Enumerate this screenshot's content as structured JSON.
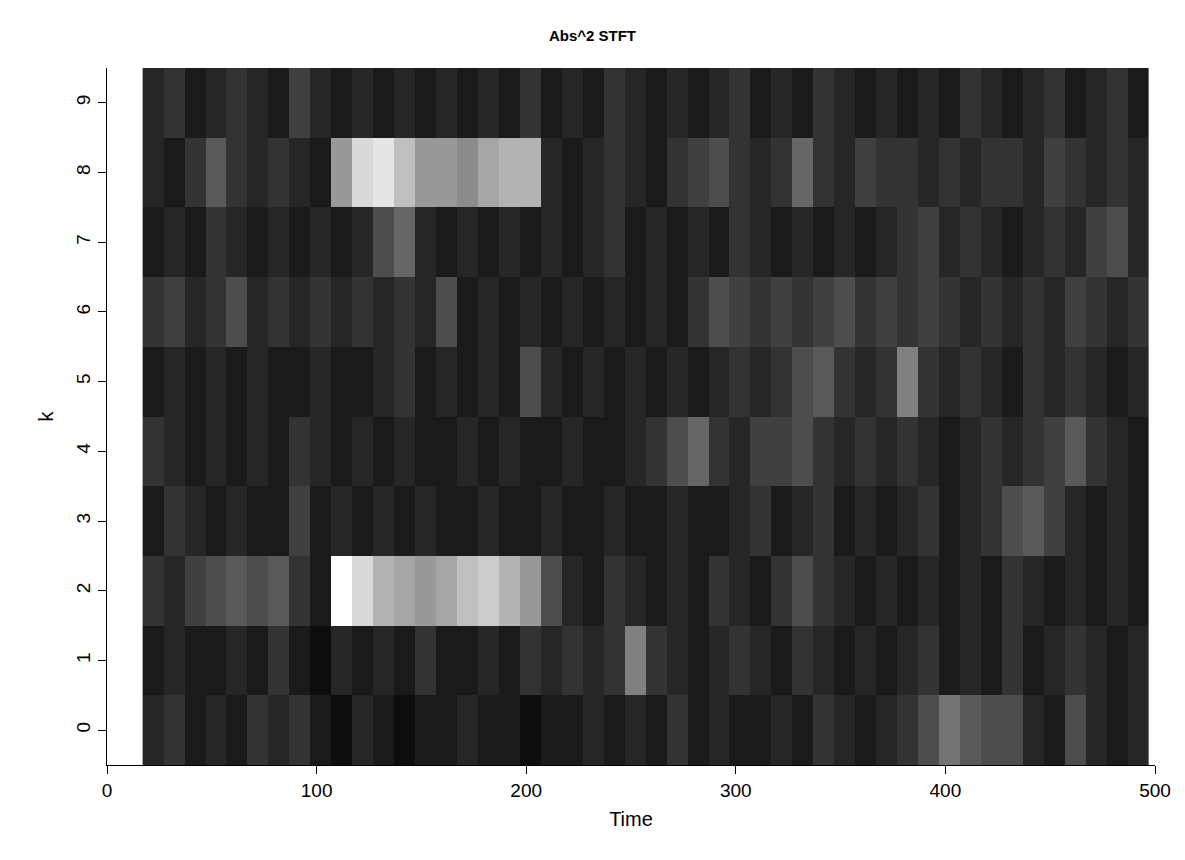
{
  "chart_data": {
    "type": "heatmap",
    "title": "Abs^2 STFT",
    "x_label": "Time",
    "y_label": "k",
    "x": [
      22,
      32,
      42,
      52,
      62,
      72,
      82,
      92,
      102,
      112,
      122,
      132,
      142,
      152,
      162,
      172,
      182,
      192,
      202,
      212,
      222,
      232,
      242,
      252,
      262,
      272,
      282,
      292,
      302,
      312,
      322,
      332,
      342,
      352,
      362,
      372,
      382,
      392,
      402,
      412,
      422,
      432,
      442,
      452,
      462,
      472,
      482,
      492
    ],
    "y": [
      0,
      1,
      2,
      3,
      4,
      5,
      6,
      7,
      8,
      9
    ],
    "z": [
      [
        0.15,
        0.2,
        0.1,
        0.15,
        0.1,
        0.2,
        0.15,
        0.2,
        0.1,
        0.05,
        0.15,
        0.1,
        0.05,
        0.1,
        0.1,
        0.15,
        0.1,
        0.1,
        0.05,
        0.1,
        0.1,
        0.15,
        0.1,
        0.15,
        0.1,
        0.2,
        0.1,
        0.15,
        0.1,
        0.1,
        0.15,
        0.1,
        0.2,
        0.15,
        0.1,
        0.15,
        0.2,
        0.3,
        0.45,
        0.35,
        0.3,
        0.3,
        0.15,
        0.1,
        0.3,
        0.15,
        0.1,
        0.15
      ],
      [
        0.1,
        0.15,
        0.1,
        0.1,
        0.15,
        0.1,
        0.2,
        0.1,
        0.05,
        0.15,
        0.1,
        0.15,
        0.1,
        0.2,
        0.1,
        0.1,
        0.15,
        0.1,
        0.2,
        0.15,
        0.2,
        0.15,
        0.2,
        0.5,
        0.2,
        0.15,
        0.1,
        0.15,
        0.2,
        0.15,
        0.1,
        0.2,
        0.15,
        0.1,
        0.15,
        0.1,
        0.15,
        0.2,
        0.1,
        0.15,
        0.1,
        0.2,
        0.1,
        0.15,
        0.2,
        0.15,
        0.1,
        0.15
      ],
      [
        0.2,
        0.15,
        0.25,
        0.3,
        0.35,
        0.3,
        0.35,
        0.2,
        0.1,
        1.0,
        0.85,
        0.7,
        0.65,
        0.6,
        0.65,
        0.75,
        0.8,
        0.7,
        0.6,
        0.3,
        0.15,
        0.1,
        0.2,
        0.15,
        0.1,
        0.15,
        0.1,
        0.2,
        0.15,
        0.1,
        0.2,
        0.3,
        0.2,
        0.15,
        0.1,
        0.15,
        0.1,
        0.15,
        0.1,
        0.15,
        0.1,
        0.2,
        0.15,
        0.1,
        0.15,
        0.1,
        0.15,
        0.1
      ],
      [
        0.1,
        0.2,
        0.15,
        0.1,
        0.15,
        0.1,
        0.1,
        0.25,
        0.1,
        0.15,
        0.1,
        0.15,
        0.1,
        0.15,
        0.1,
        0.1,
        0.15,
        0.1,
        0.1,
        0.15,
        0.1,
        0.1,
        0.15,
        0.1,
        0.1,
        0.15,
        0.1,
        0.1,
        0.15,
        0.2,
        0.1,
        0.15,
        0.2,
        0.1,
        0.15,
        0.1,
        0.15,
        0.2,
        0.1,
        0.15,
        0.2,
        0.3,
        0.35,
        0.25,
        0.15,
        0.1,
        0.15,
        0.1
      ],
      [
        0.2,
        0.15,
        0.1,
        0.15,
        0.1,
        0.15,
        0.1,
        0.2,
        0.15,
        0.1,
        0.15,
        0.1,
        0.15,
        0.1,
        0.1,
        0.15,
        0.1,
        0.15,
        0.1,
        0.1,
        0.15,
        0.1,
        0.1,
        0.15,
        0.2,
        0.3,
        0.4,
        0.2,
        0.15,
        0.25,
        0.25,
        0.3,
        0.2,
        0.15,
        0.2,
        0.15,
        0.2,
        0.15,
        0.1,
        0.15,
        0.2,
        0.15,
        0.2,
        0.25,
        0.35,
        0.2,
        0.15,
        0.1
      ],
      [
        0.1,
        0.15,
        0.1,
        0.15,
        0.1,
        0.15,
        0.1,
        0.1,
        0.15,
        0.1,
        0.1,
        0.15,
        0.2,
        0.1,
        0.15,
        0.1,
        0.15,
        0.1,
        0.3,
        0.15,
        0.1,
        0.15,
        0.1,
        0.15,
        0.1,
        0.15,
        0.1,
        0.15,
        0.2,
        0.15,
        0.2,
        0.3,
        0.35,
        0.2,
        0.15,
        0.2,
        0.5,
        0.2,
        0.15,
        0.2,
        0.15,
        0.1,
        0.2,
        0.15,
        0.2,
        0.15,
        0.1,
        0.15
      ],
      [
        0.2,
        0.25,
        0.15,
        0.2,
        0.3,
        0.15,
        0.2,
        0.15,
        0.2,
        0.15,
        0.2,
        0.15,
        0.2,
        0.15,
        0.3,
        0.1,
        0.15,
        0.1,
        0.15,
        0.1,
        0.15,
        0.1,
        0.15,
        0.1,
        0.15,
        0.1,
        0.2,
        0.3,
        0.25,
        0.2,
        0.25,
        0.2,
        0.25,
        0.3,
        0.2,
        0.25,
        0.2,
        0.25,
        0.2,
        0.15,
        0.2,
        0.15,
        0.2,
        0.15,
        0.25,
        0.2,
        0.15,
        0.2
      ],
      [
        0.1,
        0.15,
        0.1,
        0.2,
        0.15,
        0.1,
        0.15,
        0.1,
        0.15,
        0.1,
        0.15,
        0.3,
        0.4,
        0.15,
        0.1,
        0.15,
        0.1,
        0.15,
        0.1,
        0.15,
        0.1,
        0.15,
        0.2,
        0.1,
        0.15,
        0.1,
        0.15,
        0.1,
        0.2,
        0.15,
        0.1,
        0.15,
        0.1,
        0.15,
        0.1,
        0.15,
        0.2,
        0.25,
        0.15,
        0.2,
        0.15,
        0.1,
        0.15,
        0.2,
        0.15,
        0.25,
        0.3,
        0.15
      ],
      [
        0.15,
        0.1,
        0.2,
        0.35,
        0.2,
        0.15,
        0.2,
        0.15,
        0.1,
        0.6,
        0.85,
        0.9,
        0.75,
        0.6,
        0.6,
        0.55,
        0.65,
        0.7,
        0.7,
        0.15,
        0.1,
        0.15,
        0.2,
        0.15,
        0.1,
        0.2,
        0.25,
        0.3,
        0.2,
        0.15,
        0.2,
        0.4,
        0.2,
        0.15,
        0.25,
        0.2,
        0.2,
        0.15,
        0.2,
        0.15,
        0.2,
        0.2,
        0.15,
        0.25,
        0.2,
        0.15,
        0.2,
        0.15
      ],
      [
        0.15,
        0.2,
        0.1,
        0.15,
        0.2,
        0.15,
        0.1,
        0.25,
        0.15,
        0.1,
        0.15,
        0.1,
        0.15,
        0.1,
        0.15,
        0.1,
        0.15,
        0.1,
        0.2,
        0.1,
        0.15,
        0.1,
        0.2,
        0.15,
        0.1,
        0.15,
        0.1,
        0.15,
        0.2,
        0.1,
        0.15,
        0.1,
        0.2,
        0.15,
        0.1,
        0.15,
        0.1,
        0.15,
        0.1,
        0.2,
        0.15,
        0.1,
        0.15,
        0.2,
        0.1,
        0.15,
        0.2,
        0.1
      ]
    ],
    "zlim": [
      0,
      1
    ],
    "xlim": [
      0,
      500
    ],
    "xticks": [
      0,
      100,
      200,
      300,
      400,
      500
    ],
    "ylim": [
      -0.5,
      9.5
    ],
    "yticks": [
      0,
      1,
      2,
      3,
      4,
      5,
      6,
      7,
      8,
      9
    ],
    "grid": false
  }
}
